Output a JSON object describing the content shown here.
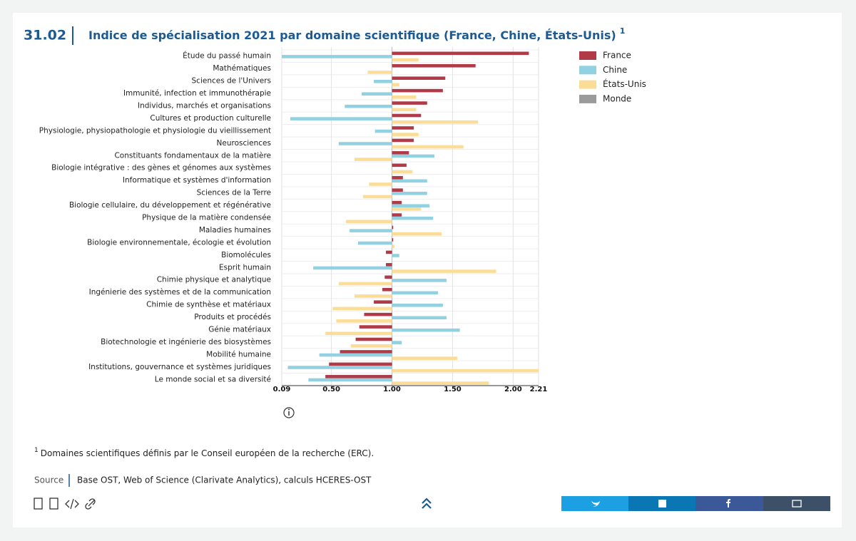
{
  "header": {
    "number": "31.02",
    "note": "1"
  },
  "chart_data": {
    "type": "bar",
    "orientation": "horizontal",
    "baseline": 1,
    "title": "Indice de spécialisation 2021 par domaine scientifique (France, Chine, États-Unis)",
    "categories": [
      "Étude du passé humain",
      "Mathématiques",
      "Sciences de l'Univers",
      "Immunité, infection et immunothérapie",
      "Individus, marchés et organisations",
      "Cultures et production culturelle",
      "Physiologie, physiopathologie et physiologie du vieillissement",
      "Neurosciences",
      "Constituants fondamentaux de la matière",
      "Biologie intégrative : des gènes et génomes aux systèmes",
      "Informatique et systèmes d'information",
      "Sciences de la Terre",
      "Biologie cellulaire, du développement et régénérative",
      "Physique de la matière condensée",
      "Maladies humaines",
      "Biologie environnementale, écologie et évolution",
      "Biomolécules",
      "Esprit humain",
      "Chimie physique et analytique",
      "Ingénierie des systèmes et de la communication",
      "Chimie de synthèse et matériaux",
      "Produits et procédés",
      "Génie matériaux",
      "Biotechnologie et ingénierie des biosystèmes",
      "Mobilité humaine",
      "Institutions, gouvernance et systèmes juridiques",
      "Le monde social et sa diversité"
    ],
    "series": [
      {
        "name": "France",
        "color": "#b03a48",
        "values": [
          2.13,
          1.69,
          1.44,
          1.42,
          1.29,
          1.24,
          1.18,
          1.18,
          1.14,
          1.12,
          1.09,
          1.09,
          1.08,
          1.08,
          1.01,
          1.01,
          0.95,
          0.95,
          0.94,
          0.92,
          0.85,
          0.77,
          0.73,
          0.7,
          0.57,
          0.48,
          0.45
        ]
      },
      {
        "name": "Chine",
        "color": "#92d1e1",
        "values": [
          0.09,
          1.0,
          0.85,
          0.75,
          0.61,
          0.16,
          0.86,
          0.56,
          1.35,
          1.0,
          1.29,
          1.29,
          1.31,
          1.34,
          0.65,
          0.72,
          1.06,
          0.35,
          1.45,
          1.38,
          1.42,
          1.45,
          1.56,
          1.08,
          0.4,
          0.14,
          0.31
        ]
      },
      {
        "name": "États-Unis",
        "color": "#fbdd98",
        "values": [
          1.22,
          0.8,
          1.06,
          1.2,
          1.2,
          1.71,
          1.22,
          1.59,
          0.69,
          1.17,
          0.81,
          0.76,
          1.24,
          0.62,
          1.41,
          1.02,
          1.0,
          1.86,
          0.56,
          0.69,
          0.51,
          0.54,
          0.45,
          0.66,
          1.54,
          2.21,
          1.8
        ]
      },
      {
        "name": "Monde",
        "color": "#9b9b9b",
        "values": [
          1,
          1,
          1,
          1,
          1,
          1,
          1,
          1,
          1,
          1,
          1,
          1,
          1,
          1,
          1,
          1,
          1,
          1,
          1,
          1,
          1,
          1,
          1,
          1,
          1,
          1,
          1
        ]
      }
    ],
    "xlim": [
      0.09,
      2.21
    ],
    "xticks": [
      0.09,
      {
        "value": 0.5,
        "label": "0.50"
      },
      {
        "value": 1,
        "label": "1.00"
      },
      {
        "value": 1.5,
        "label": "1.50"
      },
      {
        "value": 2,
        "label": "2.00"
      },
      2.21
    ],
    "grid": true,
    "legend": "right"
  },
  "footnote": {
    "marker": "1",
    "text": "Domaines scientifiques définis par le Conseil européen de la recherche (ERC)."
  },
  "source": {
    "label": "Source",
    "text": "Base OST, Web of Science (Clarivate Analytics), calculs HCERES-OST"
  }
}
